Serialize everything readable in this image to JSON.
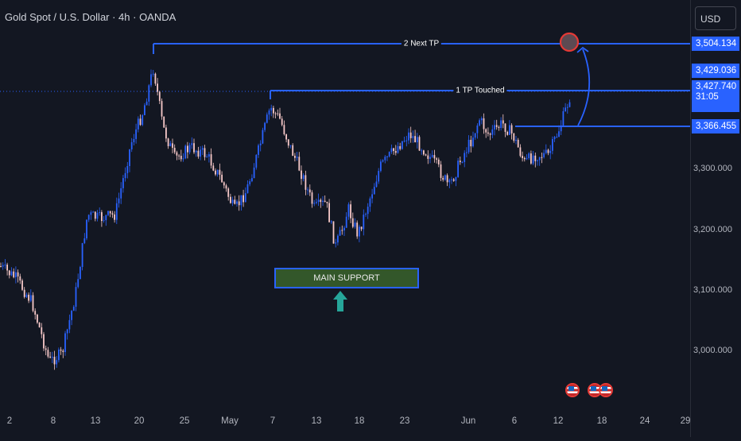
{
  "header": {
    "symbol_title": "Gold Spot / U.S. Dollar · 4h · OANDA",
    "currency": "USD"
  },
  "colors": {
    "background": "#131722",
    "bull_candle": "#2962ff",
    "bear_candle": "#f7c9c9",
    "line": "#2962ff",
    "support_fill": "#33572a",
    "target_circle": "#e53935",
    "arrow": "#26a69a"
  },
  "price_axis": {
    "ticks": [
      "3,300.000",
      "3,200.000",
      "3,100.000",
      "3,000.000"
    ],
    "tags": {
      "next_tp": "3,504.134",
      "tp_touched": "3,429.036",
      "current": "3,427.740",
      "countdown": "31:05",
      "entry": "3,366.455"
    }
  },
  "time_axis": {
    "labels": [
      "2",
      "8",
      "13",
      "20",
      "25",
      "May",
      "7",
      "13",
      "18",
      "23",
      "Jun",
      "6",
      "12",
      "18",
      "24",
      "29"
    ]
  },
  "annotations": {
    "next_tp_label": "2 Next TP",
    "tp_touched_label": "1 TP Touched",
    "support_label": "MAIN SUPPORT",
    "target_circle_icon": "target-circle-icon",
    "up_arrow_icon": "up-arrow-icon",
    "curved_arrow_icon": "curved-arrow-icon",
    "event_icons": [
      "us-flag-icon",
      "us-flag-icon",
      "us-flag-icon"
    ]
  }
}
